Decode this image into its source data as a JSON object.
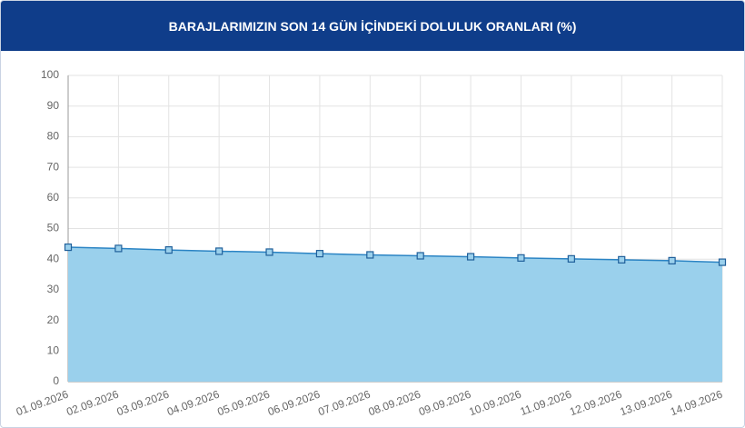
{
  "chart_data": {
    "type": "area",
    "title": "BARAJLARIMIZIN SON 14 GÜN İÇİNDEKİ DOLULUK ORANLARI (%)",
    "categories": [
      "01.09.2026",
      "02.09.2026",
      "03.09.2026",
      "04.09.2026",
      "05.09.2026",
      "06.09.2026",
      "07.09.2026",
      "08.09.2026",
      "09.09.2026",
      "10.09.2026",
      "11.09.2026",
      "12.09.2026",
      "13.09.2026",
      "14.09.2026"
    ],
    "values": [
      43.9,
      43.5,
      43.0,
      42.6,
      42.3,
      41.8,
      41.4,
      41.1,
      40.8,
      40.4,
      40.1,
      39.8,
      39.5,
      39.0
    ],
    "color": "#2b84c4",
    "fill": "#9ad0ec",
    "ylim": [
      0,
      100
    ],
    "yticks": [
      0,
      10,
      20,
      30,
      40,
      50,
      60,
      70,
      80,
      90,
      100
    ],
    "grid": true
  }
}
